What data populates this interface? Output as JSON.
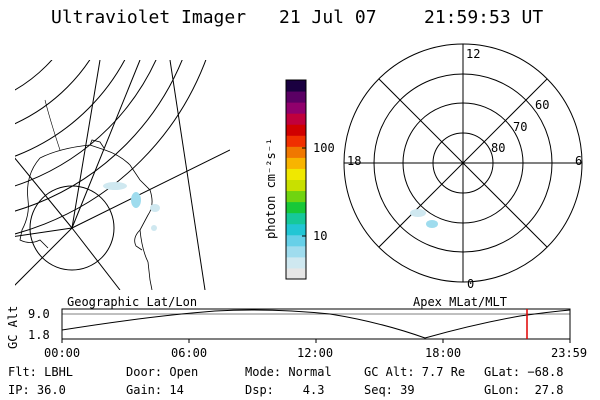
{
  "header": {
    "title": "Ultraviolet Imager",
    "date": "21 Jul 07",
    "time": "21:59:53 UT"
  },
  "colorbar": {
    "unit_label": "photon cm⁻²s⁻¹",
    "ticks": [
      "100",
      "10"
    ],
    "colors": [
      "#e6e6e6",
      "#cfe8f0",
      "#9fdcee",
      "#66d0e8",
      "#22c6d4",
      "#16c89a",
      "#18c838",
      "#70d410",
      "#c8e000",
      "#f0e800",
      "#f8b400",
      "#f07800",
      "#f03000",
      "#d00000",
      "#c0003c",
      "#90006c",
      "#5a0064",
      "#1a0040"
    ]
  },
  "map_left": {
    "label": "Geographic Lat/Lon"
  },
  "map_right": {
    "label": "Apex MLat/MLT",
    "mlt_labels": {
      "top": "12",
      "left": "18",
      "right": "6",
      "bottom": "0"
    },
    "lat_labels": [
      "60",
      "70",
      "80"
    ]
  },
  "altitude_plot": {
    "ylabel": "GC Alt",
    "yticks": [
      "9.0",
      "1.8"
    ],
    "xticks": [
      "00:00",
      "06:00",
      "12:00",
      "18:00",
      "23:59"
    ],
    "marker_color": "#e00000"
  },
  "info": {
    "flt": "Flt: LBHL",
    "ip": "IP: 36.0",
    "door": "Door: Open",
    "gain": "Gain: 14",
    "mode": "Mode: Normal",
    "dsp": "Dsp:    4.3",
    "gcalt": "GC Alt: 7.7 Re",
    "seq": "Seq: 39",
    "glat": "GLat: −68.8",
    "glon": "GLon:  27.8"
  }
}
